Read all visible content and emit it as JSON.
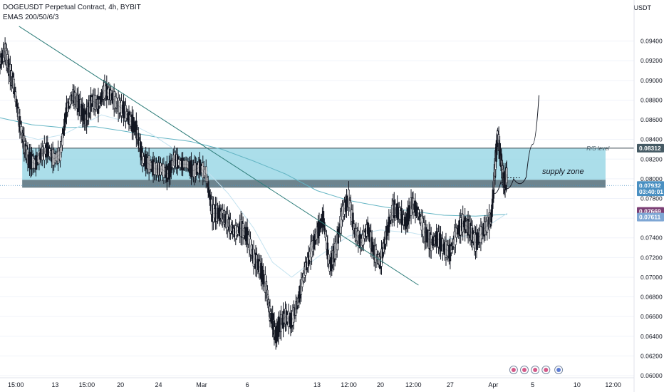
{
  "header": {
    "title": "DOGEUSDT Perpetual Contract, 4h, BYBIT",
    "indicator": "EMAS 200/50/6/3"
  },
  "axis": {
    "currency": "USDT"
  },
  "chart_data": {
    "type": "line",
    "ylim": [
      0.06,
      0.096
    ],
    "y_ticks": [
      "0.09400",
      "0.09200",
      "0.09000",
      "0.08800",
      "0.08600",
      "0.08400",
      "0.08200",
      "0.08000",
      "0.07800",
      "0.07600",
      "0.07400",
      "0.07200",
      "0.07000",
      "0.06800",
      "0.06600",
      "0.06400",
      "0.06200",
      "0.06000"
    ],
    "x_ticks": [
      "15:00",
      "13",
      "15:00",
      "20",
      "24",
      "Mar",
      "6",
      "13",
      "12:00",
      "20",
      "12:00",
      "27",
      "Apr",
      "5",
      "10",
      "12:00"
    ],
    "x_tick_pos": [
      0.025,
      0.087,
      0.137,
      0.19,
      0.25,
      0.318,
      0.39,
      0.5,
      0.55,
      0.6,
      0.652,
      0.71,
      0.778,
      0.84,
      0.91,
      0.967
    ],
    "series": [
      {
        "x": [
          0,
          0.008,
          0.015,
          0.022,
          0.03,
          0.038,
          0.045,
          0.055,
          0.065,
          0.075,
          0.085,
          0.095,
          0.105,
          0.115,
          0.125,
          0.135,
          0.145,
          0.155,
          0.165,
          0.175,
          0.185,
          0.195,
          0.205,
          0.215,
          0.225,
          0.235,
          0.245,
          0.255,
          0.265,
          0.275,
          0.285,
          0.295,
          0.305,
          0.315,
          0.325,
          0.335,
          0.345,
          0.352,
          0.36,
          0.37,
          0.38,
          0.39,
          0.4,
          0.41,
          0.42,
          0.425,
          0.43,
          0.435,
          0.44,
          0.45,
          0.46,
          0.47,
          0.48,
          0.49,
          0.5,
          0.51,
          0.52,
          0.53,
          0.54,
          0.55,
          0.56,
          0.57,
          0.58,
          0.59,
          0.6,
          0.61,
          0.62,
          0.63,
          0.64,
          0.65,
          0.66,
          0.67,
          0.68,
          0.69,
          0.7,
          0.71,
          0.72,
          0.73,
          0.74,
          0.75,
          0.76,
          0.77,
          0.775,
          0.78,
          0.785,
          0.79,
          0.795,
          0.8
        ],
        "y": [
          0.0918,
          0.093,
          0.091,
          0.0895,
          0.086,
          0.0835,
          0.082,
          0.0815,
          0.0825,
          0.083,
          0.082,
          0.0825,
          0.087,
          0.0885,
          0.0875,
          0.086,
          0.088,
          0.0875,
          0.089,
          0.0885,
          0.0875,
          0.087,
          0.086,
          0.085,
          0.082,
          0.0815,
          0.081,
          0.081,
          0.0805,
          0.082,
          0.0815,
          0.0815,
          0.0808,
          0.0812,
          0.0805,
          0.0765,
          0.0765,
          0.0762,
          0.0755,
          0.0745,
          0.075,
          0.0742,
          0.072,
          0.071,
          0.069,
          0.0665,
          0.0655,
          0.064,
          0.065,
          0.066,
          0.0655,
          0.0675,
          0.0705,
          0.0725,
          0.0745,
          0.076,
          0.071,
          0.073,
          0.0765,
          0.078,
          0.0745,
          0.0735,
          0.075,
          0.0725,
          0.0715,
          0.0745,
          0.077,
          0.0765,
          0.0755,
          0.0775,
          0.0765,
          0.0745,
          0.0735,
          0.074,
          0.073,
          0.0725,
          0.0745,
          0.0755,
          0.075,
          0.0735,
          0.0745,
          0.0755,
          0.076,
          0.0805,
          0.0845,
          0.082,
          0.0795,
          0.0805
        ]
      },
      {
        "x": [
          0,
          0.05,
          0.1,
          0.15,
          0.2,
          0.25,
          0.3,
          0.35,
          0.4,
          0.45,
          0.5,
          0.55,
          0.6,
          0.65,
          0.7,
          0.75,
          0.8
        ],
        "y": [
          0.0862,
          0.0855,
          0.0852,
          0.0853,
          0.0848,
          0.0842,
          0.0838,
          0.083,
          0.0818,
          0.0805,
          0.0788,
          0.0778,
          0.0772,
          0.0767,
          0.0763,
          0.0762,
          0.0764
        ]
      },
      {
        "x": [
          0.03,
          0.06,
          0.1,
          0.13,
          0.16,
          0.2,
          0.24,
          0.28,
          0.32,
          0.36,
          0.4,
          0.43,
          0.46,
          0.5,
          0.55,
          0.6,
          0.65,
          0.7,
          0.75,
          0.8
        ],
        "y": [
          0.0845,
          0.084,
          0.0845,
          0.0855,
          0.0865,
          0.0858,
          0.0845,
          0.0828,
          0.0812,
          0.0785,
          0.075,
          0.0715,
          0.07,
          0.072,
          0.0742,
          0.0748,
          0.0745,
          0.0738,
          0.0744,
          0.0765
        ]
      }
    ],
    "price_labels": [
      {
        "text": "0.08312",
        "value": 0.08312,
        "color": "#455a64"
      },
      {
        "text": "0.07932",
        "value": 0.07932,
        "color": "#4a90c2"
      },
      {
        "text": "03:40:01",
        "value": 0.07868,
        "color": "#4a90c2"
      },
      {
        "text": "0.07669",
        "value": 0.07669,
        "color": "#7b3f75"
      },
      {
        "text": "0.07611",
        "value": 0.07611,
        "color": "#7ea6d4"
      }
    ],
    "zone": {
      "top": 0.08312,
      "bottom": 0.0799,
      "label": "supply zone",
      "color": "#8fd3e3"
    },
    "rs_line": {
      "value": 0.08312,
      "label": "R/S level"
    },
    "trendline": {
      "from": [
        0.03,
        0.0955
      ],
      "to": [
        0.66,
        0.0692
      ]
    },
    "projection": {
      "x": [
        0.78,
        0.79,
        0.8,
        0.81,
        0.82,
        0.83,
        0.84,
        0.85
      ],
      "y": [
        0.0785,
        0.0797,
        0.079,
        0.08,
        0.0795,
        0.0802,
        0.0835,
        0.0885
      ]
    },
    "current_price_line": 0.07932
  }
}
